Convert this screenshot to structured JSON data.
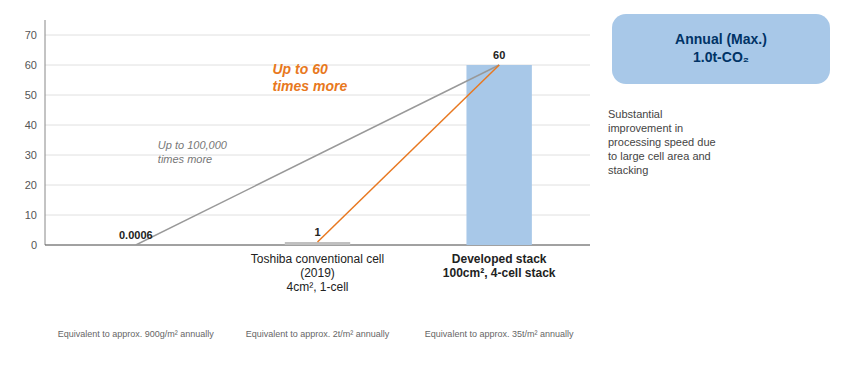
{
  "chart_data": {
    "type": "bar",
    "categories": [
      null,
      "Toshiba conventional cell\n(2019)\n4cm², 1-cell",
      "Developed stack\n100cm², 4-cell stack"
    ],
    "values": [
      0.0006,
      1,
      60
    ],
    "colors": [
      "#c0c0c0",
      "#c0c0c0",
      "#a8c8e8"
    ],
    "ylim": [
      0,
      75
    ],
    "yticks": [
      0,
      10,
      20,
      30,
      40,
      50,
      60,
      70
    ],
    "grid": true,
    "data_labels": true,
    "sub_labels": [
      "Equivalent to approx. 900g/m² annually",
      "Equivalent to approx. 2t/m² annually",
      "Equivalent to approx. 35t/m² annually"
    ],
    "annotations": [
      "Up to 100,000\ntimes more",
      "Up to 60\ntimes more",
      "Substantial\nimprovement in\nprocessing speed due\nto large cell area and\nstacking",
      "Annual (Max.)\n1.0t-CO₂"
    ]
  }
}
